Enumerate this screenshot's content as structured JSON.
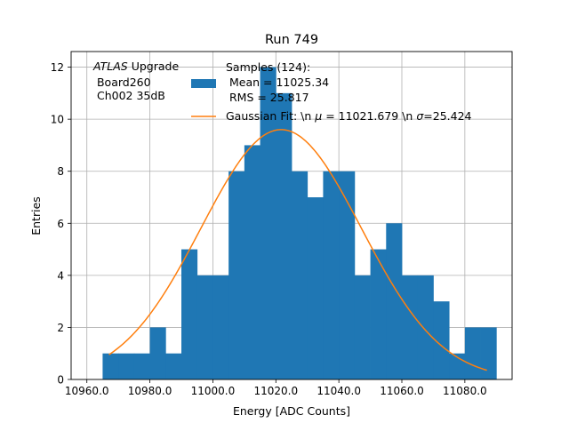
{
  "colors": {
    "bar": "#1f77b4",
    "fit": "#ff7f0e",
    "grid": "#b0b0b0",
    "axis": "#000000"
  },
  "chart_data": {
    "type": "bar",
    "title": "Run 749",
    "xlabel": "Energy [ADC Counts]",
    "ylabel": "Entries",
    "xlim": [
      10955,
      11095
    ],
    "ylim": [
      0,
      12.6
    ],
    "grid": true,
    "x_ticks": [
      10960,
      10980,
      11000,
      11020,
      11040,
      11060,
      11080
    ],
    "x_tick_labels": [
      "10960.0",
      "10980.0",
      "11000.0",
      "11020.0",
      "11040.0",
      "11060.0",
      "11080.0"
    ],
    "y_ticks": [
      0,
      2,
      4,
      6,
      8,
      10,
      12
    ],
    "y_tick_labels": [
      "0",
      "2",
      "4",
      "6",
      "8",
      "10",
      "12"
    ],
    "annotation": {
      "atlas_italic": "ATLAS",
      "atlas_rest": " Upgrade",
      "line2": " Board260",
      "line3": " Ch002 35dB"
    },
    "legend": {
      "placement": "top-center",
      "histogram_label_lines": [
        "Samples (124):",
        " Mean = 11025.34",
        " RMS = 25.817"
      ],
      "fit_label_start": "Gaussian Fit: \\n ",
      "fit_label_mu": "μ",
      "fit_label_mid": " = 11021.679 \\n ",
      "fit_label_sigma": "σ",
      "fit_label_end": "=25.424"
    },
    "histogram": {
      "name": "Samples (124)",
      "bin_start": 10965,
      "bin_width": 5,
      "counts": [
        1,
        1,
        1,
        2,
        1,
        5,
        4,
        4,
        8,
        9,
        12,
        11,
        8,
        7,
        8,
        8,
        4,
        5,
        6,
        4,
        4,
        3,
        1,
        2,
        2
      ]
    },
    "fit": {
      "name": "Gaussian Fit",
      "mu": 11021.679,
      "sigma": 25.424,
      "amplitude": 9.6,
      "x_range": [
        10967,
        11087
      ]
    }
  }
}
